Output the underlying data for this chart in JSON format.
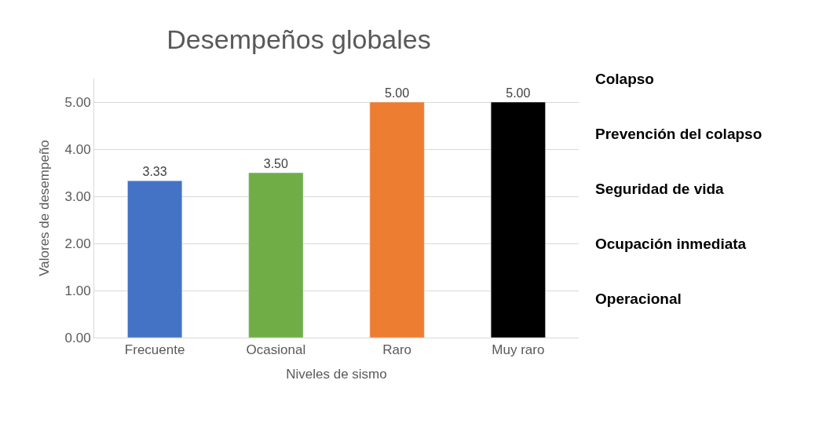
{
  "chart_data": {
    "type": "bar",
    "title": "Desempeños globales",
    "xlabel": "Niveles de sismo",
    "ylabel": "Valores de desempeño",
    "categories": [
      "Frecuente",
      "Ocasional",
      "Raro",
      "Muy raro"
    ],
    "values": [
      3.33,
      3.5,
      5.0,
      5.0
    ],
    "colors": [
      "#4472c4",
      "#70ad47",
      "#ed7d31",
      "#000000"
    ],
    "value_labels": [
      "3.33",
      "3.50",
      "5.00",
      "5.00"
    ],
    "ylim": [
      0,
      5.5
    ],
    "yticks": [
      {
        "value": 0,
        "label": "0.00"
      },
      {
        "value": 1,
        "label": "1.00"
      },
      {
        "value": 2,
        "label": "2.00"
      },
      {
        "value": 3,
        "label": "3.00"
      },
      {
        "value": 4,
        "label": "4.00"
      },
      {
        "value": 5,
        "label": "5.00"
      }
    ],
    "grid": "y",
    "legend": false,
    "annotations": [
      "Colapso",
      "Prevención del colapso",
      "Seguridad de vida",
      "Ocupación inmediata",
      "Operacional"
    ]
  }
}
